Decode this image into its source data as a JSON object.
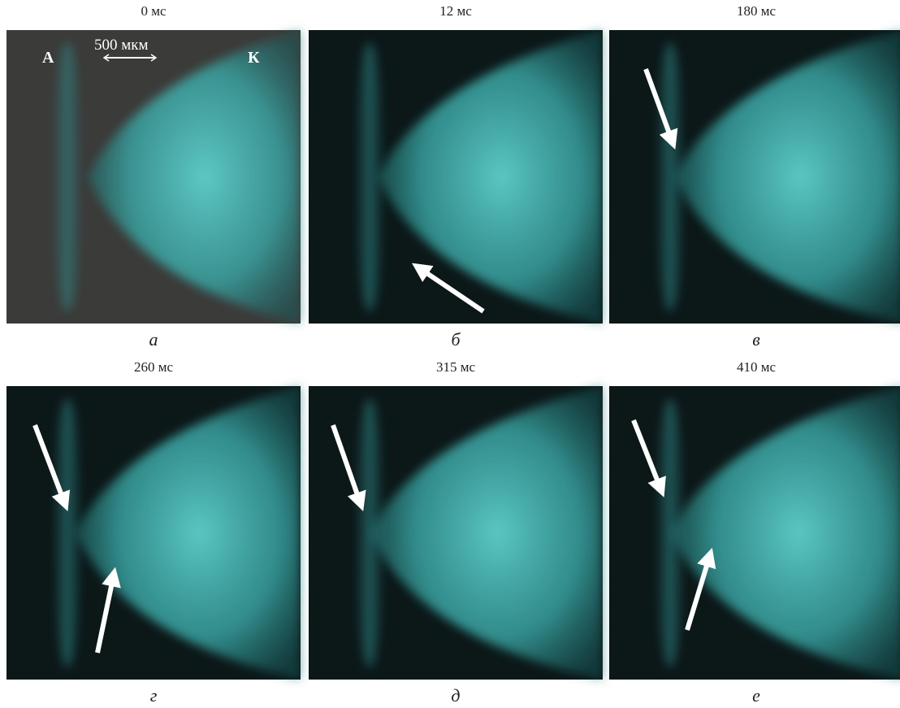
{
  "panels": [
    {
      "time": "0 мс",
      "caption": "а",
      "annotations": {
        "anode": "А",
        "cathode": "К",
        "scale": "500 мкм"
      }
    },
    {
      "time": "12 мс",
      "caption": "б"
    },
    {
      "time": "180 мс",
      "caption": "в"
    },
    {
      "time": "260 мс",
      "caption": "г"
    },
    {
      "time": "315 мс",
      "caption": "д"
    },
    {
      "time": "410 мс",
      "caption": "е"
    }
  ]
}
